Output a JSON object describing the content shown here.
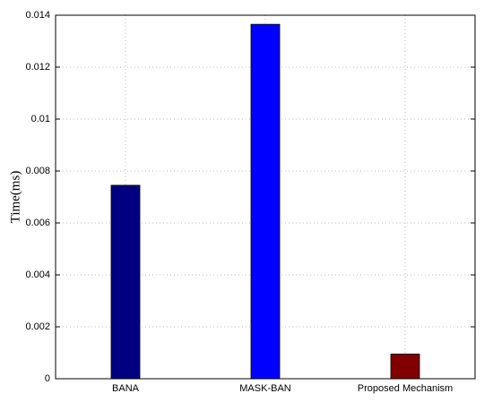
{
  "chart_data": {
    "type": "bar",
    "y_label": "Time(ms)",
    "categories": [
      "BANA",
      "MASK-BAN",
      "Proposed Mechanism"
    ],
    "values": [
      0.00745,
      0.01365,
      0.00095
    ],
    "colors": [
      "#000080",
      "#0000ff",
      "#800000"
    ],
    "ylim": [
      0,
      0.014
    ],
    "yticks": [
      0,
      0.002,
      0.004,
      0.006,
      0.008,
      0.01,
      0.012,
      0.014
    ],
    "grid": true
  }
}
